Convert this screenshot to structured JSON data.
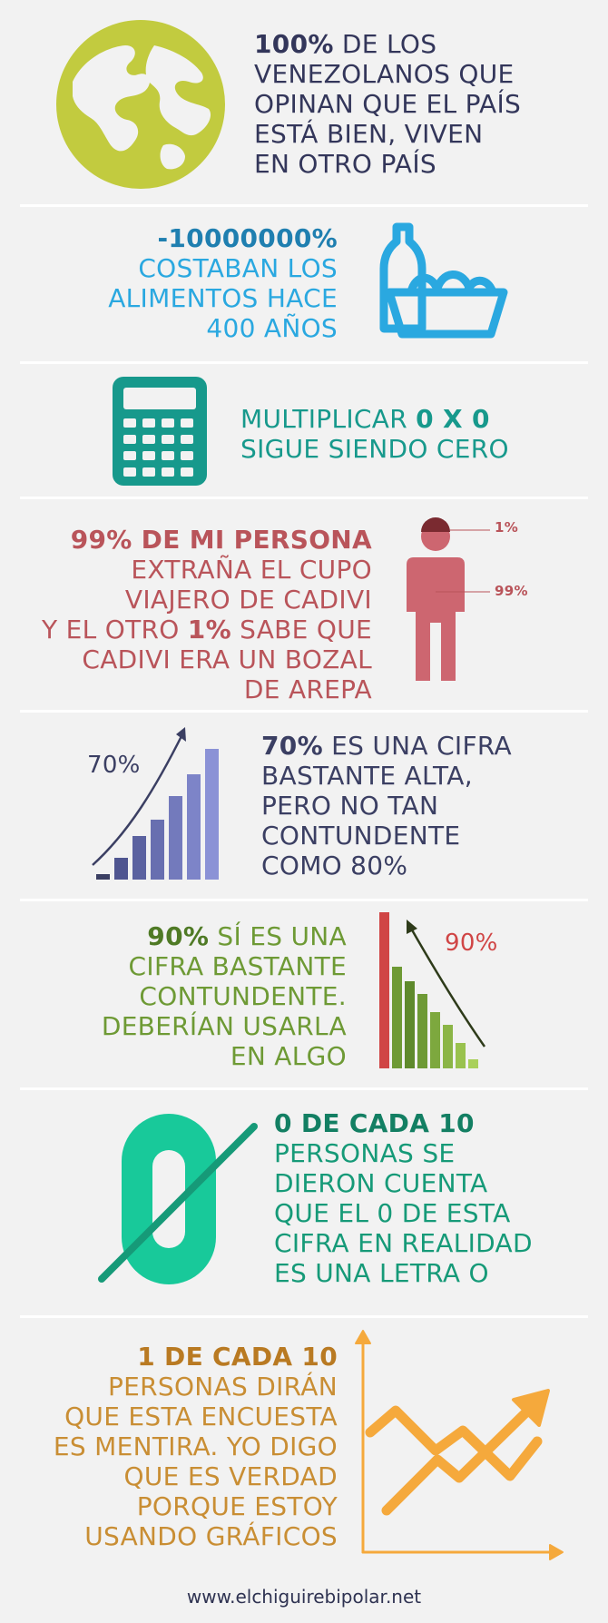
{
  "colors": {
    "olive": "#c2cb3f",
    "blue": "#2aa8e0",
    "teal": "#17998c",
    "rose": "#b9545a",
    "rose_fill": "#cd6670",
    "indigo": "#3b3f63",
    "indigo_bars": "#7d84c8",
    "green": "#6e9a35",
    "red_bar": "#d04545",
    "mint": "#18c99a",
    "mint_text": "#169a78",
    "orange": "#f5a93c",
    "orange_text": "#c98e34",
    "navy": "#33365a"
  },
  "s1": {
    "bold": "100%",
    "line1_rest": " DE LOS",
    "line2": "VENEZOLANOS QUE",
    "line3": "OPINAN QUE EL PAÍS",
    "line4": "ESTÁ BIEN, VIVEN",
    "line5": "EN OTRO PAÍS",
    "icon": "globe-icon"
  },
  "s2": {
    "bold": "-10000000%",
    "line2": "COSTABAN LOS",
    "line3": "ALIMENTOS HACE",
    "line4": "400 AÑOS",
    "icon": "grocery-basket-icon"
  },
  "s3": {
    "line1_pre": "MULTIPLICAR ",
    "line1_bold": "0 X 0",
    "line2": "SIGUE SIENDO CERO",
    "icon": "calculator-icon"
  },
  "s4": {
    "bold": "99% DE MI PERSONA",
    "line2": "EXTRAÑA EL CUPO",
    "line3": "VIAJERO DE CADIVI",
    "line4_pre": "Y EL OTRO ",
    "line4_bold": "1%",
    "line4_post": " SABE QUE",
    "line5": "CADIVI ERA UN BOZAL",
    "line6": "DE AREPA",
    "label_top": "1%",
    "label_body": "99%",
    "icon": "person-icon"
  },
  "s5": {
    "chart_label": "70%",
    "bold": "70%",
    "line1_rest": " ES UNA CIFRA",
    "line2": "BASTANTE ALTA,",
    "line3": "PERO NO TAN",
    "line4": "CONTUNDENTE",
    "line5": "COMO 80%"
  },
  "s6": {
    "bold": "90%",
    "line1_rest": " SÍ ES UNA",
    "line2": "CIFRA BASTANTE",
    "line3": "CONTUNDENTE.",
    "line4": "DEBERÍAN USARLA",
    "line5": "EN ALGO",
    "chart_label": "90%"
  },
  "s7": {
    "bold": "0 DE CADA 10",
    "line2": "PERSONAS SE",
    "line3": "DIERON CUENTA",
    "line4": "QUE EL 0 DE ESTA",
    "line5": "CIFRA EN REALIDAD",
    "line6": "ES UNA LETRA O",
    "icon": "zero-crossed-icon"
  },
  "s8": {
    "bold": "1 DE CADA 10",
    "line2": "PERSONAS DIRÁN",
    "line3": "QUE ESTA ENCUESTA",
    "line4": "ES MENTIRA. YO DIGO",
    "line5": "QUE ES VERDAD",
    "line6": "PORQUE ESTOY",
    "line7": "USANDO GRÁFICOS",
    "icon": "line-graph-icon"
  },
  "footer": "www.elchiguirebipolar.net"
}
